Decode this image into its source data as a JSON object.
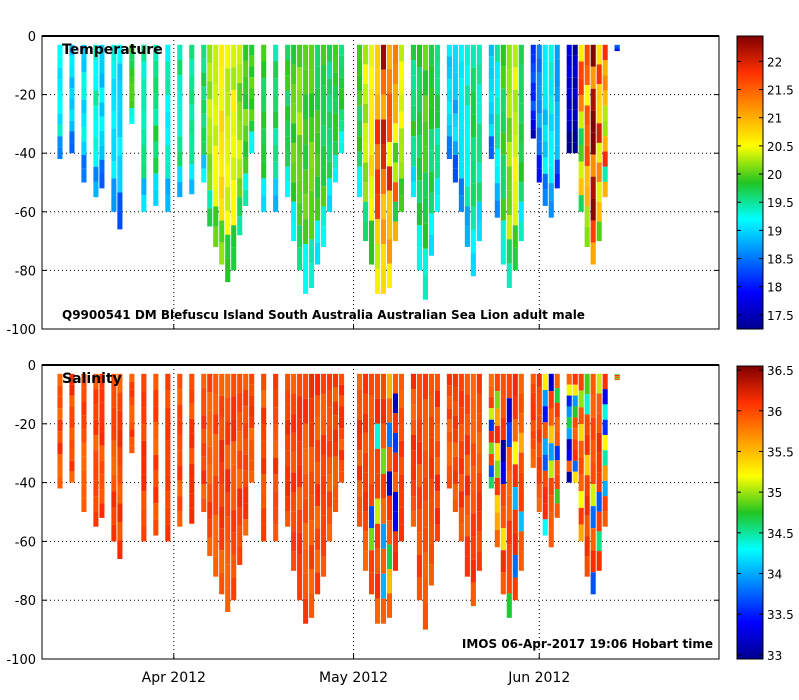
{
  "chart_data": [
    {
      "type": "heatmap",
      "title": "Temperature",
      "variable": "temperature",
      "ylabel": "",
      "ylim": [
        -100,
        0
      ],
      "yticks": [
        0,
        -20,
        -40,
        -60,
        -80,
        -100
      ],
      "y_tick_labels": [
        "0",
        "-20",
        "-40",
        "-60",
        "-80",
        "-100"
      ],
      "x_tick_labels": [
        "Apr 2012",
        "May 2012",
        "Jun 2012"
      ],
      "xlim_days": [
        -22,
        91
      ],
      "x_tick_days": [
        0,
        30,
        61
      ],
      "grid": true,
      "annotation": "Q9900541  DM  Blefuscu  Island  South  Australia  Australian  Sea  Lion  adult  male",
      "annotation_position": "bottom-left",
      "colorbar": {
        "min": 17.25,
        "max": 22.45,
        "ticks": [
          17.5,
          18,
          18.5,
          19,
          19.5,
          20,
          20.5,
          21,
          21.5,
          22
        ],
        "tick_labels": [
          "17.5",
          "18",
          "18.5",
          "19",
          "19.5",
          "20",
          "20.5",
          "21",
          "21.5",
          "22"
        ]
      },
      "profiles": [
        {
          "day": -19,
          "depth": 42,
          "t": 19.2
        },
        {
          "day": -17,
          "depth": 40,
          "t": 19.0
        },
        {
          "day": -15,
          "depth": 50,
          "t": 19.1
        },
        {
          "day": -13,
          "depth": 55,
          "t": 19.3
        },
        {
          "day": -12,
          "depth": 52,
          "t": 19.0
        },
        {
          "day": -10,
          "depth": 60,
          "t": 19.2
        },
        {
          "day": -9,
          "depth": 66,
          "t": 19.0
        },
        {
          "day": -7,
          "depth": 30,
          "t": 19.8
        },
        {
          "day": -5,
          "depth": 60,
          "t": 19.5
        },
        {
          "day": -3,
          "depth": 58,
          "t": 19.6
        },
        {
          "day": -1,
          "depth": 60,
          "t": 19.3
        },
        {
          "day": 1,
          "depth": 55,
          "t": 19.5
        },
        {
          "day": 3,
          "depth": 54,
          "t": 19.6
        },
        {
          "day": 5,
          "depth": 50,
          "t": 19.7
        },
        {
          "day": 6,
          "depth": 65,
          "t": 20.2
        },
        {
          "day": 7,
          "depth": 72,
          "t": 20.5
        },
        {
          "day": 8,
          "depth": 78,
          "t": 20.6
        },
        {
          "day": 9,
          "depth": 84,
          "t": 20.3
        },
        {
          "day": 10,
          "depth": 80,
          "t": 20.4
        },
        {
          "day": 11,
          "depth": 68,
          "t": 20.2
        },
        {
          "day": 12,
          "depth": 58,
          "t": 20.0
        },
        {
          "day": 13,
          "depth": 40,
          "t": 19.9
        },
        {
          "day": 15,
          "depth": 60,
          "t": 19.8
        },
        {
          "day": 17,
          "depth": 60,
          "t": 19.6
        },
        {
          "day": 19,
          "depth": 55,
          "t": 19.8
        },
        {
          "day": 20,
          "depth": 70,
          "t": 19.9
        },
        {
          "day": 21,
          "depth": 80,
          "t": 20.1
        },
        {
          "day": 22,
          "depth": 88,
          "t": 19.9
        },
        {
          "day": 23,
          "depth": 86,
          "t": 20.0
        },
        {
          "day": 24,
          "depth": 78,
          "t": 19.8
        },
        {
          "day": 25,
          "depth": 72,
          "t": 19.8
        },
        {
          "day": 26,
          "depth": 60,
          "t": 19.7
        },
        {
          "day": 27,
          "depth": 50,
          "t": 19.9
        },
        {
          "day": 28,
          "depth": 40,
          "t": 19.7
        },
        {
          "day": 31,
          "depth": 55,
          "t": 19.8
        },
        {
          "day": 32,
          "depth": 70,
          "t": 20.3
        },
        {
          "day": 33,
          "depth": 78,
          "t": 20.6
        },
        {
          "day": 34,
          "depth": 88,
          "t": 21.3
        },
        {
          "day": 35,
          "depth": 88,
          "t": 21.6
        },
        {
          "day": 36,
          "depth": 86,
          "t": 21.2
        },
        {
          "day": 37,
          "depth": 70,
          "t": 20.8
        },
        {
          "day": 38,
          "depth": 60,
          "t": 20.4
        },
        {
          "day": 40,
          "depth": 55,
          "t": 19.7
        },
        {
          "day": 41,
          "depth": 80,
          "t": 19.8
        },
        {
          "day": 42,
          "depth": 90,
          "t": 19.9
        },
        {
          "day": 43,
          "depth": 75,
          "t": 19.7
        },
        {
          "day": 44,
          "depth": 60,
          "t": 19.6
        },
        {
          "day": 46,
          "depth": 42,
          "t": 19.0
        },
        {
          "day": 47,
          "depth": 50,
          "t": 18.9
        },
        {
          "day": 48,
          "depth": 60,
          "t": 19.2
        },
        {
          "day": 49,
          "depth": 72,
          "t": 19.4
        },
        {
          "day": 50,
          "depth": 82,
          "t": 19.6
        },
        {
          "day": 51,
          "depth": 70,
          "t": 19.5
        },
        {
          "day": 53,
          "depth": 42,
          "t": 18.9
        },
        {
          "day": 54,
          "depth": 62,
          "t": 19.3
        },
        {
          "day": 55,
          "depth": 78,
          "t": 19.8
        },
        {
          "day": 56,
          "depth": 86,
          "t": 20.2
        },
        {
          "day": 57,
          "depth": 80,
          "t": 20.4
        },
        {
          "day": 58,
          "depth": 70,
          "t": 19.8
        },
        {
          "day": 60,
          "depth": 35,
          "t": 18.2
        },
        {
          "day": 61,
          "depth": 50,
          "t": 18.6
        },
        {
          "day": 62,
          "depth": 58,
          "t": 19.0
        },
        {
          "day": 63,
          "depth": 62,
          "t": 19.2
        },
        {
          "day": 64,
          "depth": 52,
          "t": 18.8
        },
        {
          "day": 66,
          "depth": 40,
          "t": 17.6
        },
        {
          "day": 67,
          "depth": 40,
          "t": 17.5
        },
        {
          "day": 68,
          "depth": 60,
          "t": 20.8
        },
        {
          "day": 69,
          "depth": 72,
          "t": 21.5
        },
        {
          "day": 70,
          "depth": 78,
          "t": 21.8
        },
        {
          "day": 71,
          "depth": 70,
          "t": 21.2
        },
        {
          "day": 72,
          "depth": 55,
          "t": 20.9
        },
        {
          "day": 74,
          "depth": 5,
          "t": 18.3
        }
      ]
    },
    {
      "type": "heatmap",
      "title": "Salinity",
      "variable": "salinity",
      "ylabel": "",
      "ylim": [
        -100,
        0
      ],
      "yticks": [
        0,
        -20,
        -40,
        -60,
        -80,
        -100
      ],
      "y_tick_labels": [
        "0",
        "-20",
        "-40",
        "-60",
        "-80",
        "-100"
      ],
      "x_tick_labels": [
        "Apr 2012",
        "May 2012",
        "Jun 2012"
      ],
      "xlim_days": [
        -22,
        91
      ],
      "x_tick_days": [
        0,
        30,
        61
      ],
      "grid": true,
      "annotation": "IMOS 06-Apr-2017 19:06 Hobart time",
      "annotation_position": "bottom-right",
      "colorbar": {
        "min": 32.95,
        "max": 36.55,
        "ticks": [
          33,
          33.5,
          34,
          34.5,
          35,
          35.5,
          36,
          36.5
        ],
        "tick_labels": [
          "33",
          "33.5",
          "34",
          "34.5",
          "35",
          "35.5",
          "36",
          "36.5"
        ]
      },
      "profiles_note": "same profile days and depths as temperature panel; salinity mostly 35.8-36.3 with mixed low values near May and June"
    }
  ]
}
